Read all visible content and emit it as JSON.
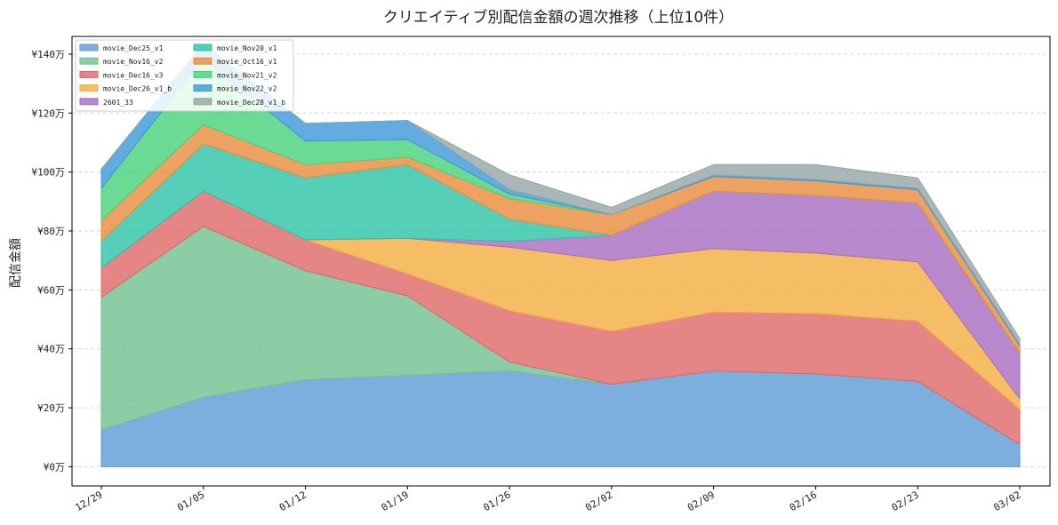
{
  "chart_data": {
    "type": "area",
    "stacked": true,
    "title": "クリエイティブ別配信金額の週次推移（上位10件）",
    "xlabel": "",
    "ylabel": "配信金額",
    "x": [
      "12/29",
      "01/05",
      "01/12",
      "01/19",
      "01/26",
      "02/02",
      "02/09",
      "02/16",
      "02/23",
      "03/02"
    ],
    "yticks": [
      "¥0万",
      "¥20万",
      "¥40万",
      "¥60万",
      "¥80万",
      "¥100万",
      "¥120万",
      "¥140万"
    ],
    "ylim": [
      -6.5,
      146
    ],
    "grid": "horizontal dashed",
    "legend_position": "top-left",
    "series": [
      {
        "name": "movie_Dec25_v1",
        "color": "#5B9BD5",
        "values": [
          12.5,
          23.5,
          29.5,
          31,
          32.5,
          28,
          32.5,
          31.5,
          29,
          7.5
        ]
      },
      {
        "name": "movie_Nov16_v2",
        "color": "#71C08E",
        "values": [
          45,
          58,
          37,
          27,
          3,
          0,
          0,
          0,
          0,
          0
        ]
      },
      {
        "name": "movie_Dec16_v3",
        "color": "#E06666",
        "values": [
          10,
          12,
          10.5,
          7.5,
          17.5,
          18,
          20,
          20.5,
          20.5,
          12
        ]
      },
      {
        "name": "movie_Dec26_v1_b",
        "color": "#F4AE3D",
        "values": [
          0,
          0,
          0,
          12,
          21.5,
          24,
          21.5,
          20.5,
          20,
          3.5
        ]
      },
      {
        "name": "2601_33",
        "color": "#A86CC1",
        "values": [
          0,
          0,
          0,
          0,
          2,
          8.5,
          19.5,
          19.5,
          20,
          15.5
        ]
      },
      {
        "name": "movie_Nov20_v1",
        "color": "#2CC3A8",
        "values": [
          9,
          16,
          21,
          25,
          7.5,
          0,
          0,
          0,
          0,
          0
        ]
      },
      {
        "name": "movie_Oct16_v1",
        "color": "#E98B3A",
        "values": [
          7,
          6.5,
          4.5,
          2.5,
          7,
          7,
          5,
          5,
          4.5,
          2.5
        ]
      },
      {
        "name": "movie_Nov21_v2",
        "color": "#46D17A",
        "values": [
          11,
          22.5,
          8,
          6,
          1.5,
          0,
          0,
          0,
          0,
          0
        ]
      },
      {
        "name": "movie_Nov22_v2",
        "color": "#3B97D9",
        "values": [
          6.5,
          5,
          6,
          6.5,
          1.5,
          0,
          0.5,
          0.5,
          0.5,
          0.5
        ]
      },
      {
        "name": "movie_Dec28_v1_b",
        "color": "#95A5A6",
        "values": [
          0,
          0,
          0,
          0,
          5,
          2.5,
          3.5,
          5,
          3.5,
          2
        ]
      }
    ]
  }
}
